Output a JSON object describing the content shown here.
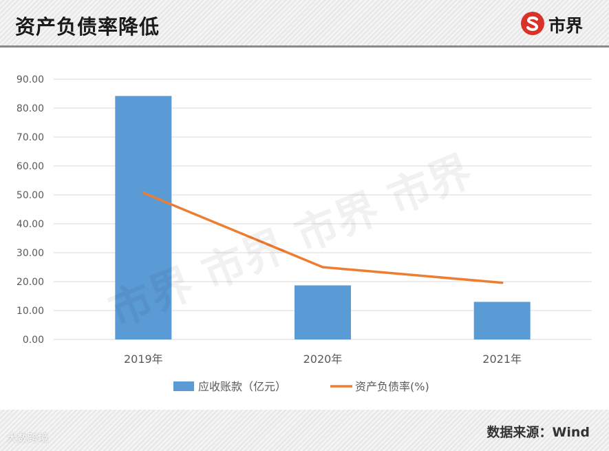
{
  "header": {
    "title": "资产负债率降低",
    "brand_name": "市界"
  },
  "footer": {
    "source": "数据来源：Wind",
    "watermark": "大数跨境"
  },
  "colors": {
    "bar": "#5b9bd5",
    "line": "#ed7d31",
    "grid": "#d9d9d9",
    "axis_text": "#595959",
    "brand_red": "#d8322a"
  },
  "chart_data": {
    "type": "bar",
    "categories": [
      "2019年",
      "2020年",
      "2021年"
    ],
    "series": [
      {
        "name": "应收账款（亿元）",
        "type": "bar",
        "values": [
          84.2,
          18.7,
          13.0
        ]
      },
      {
        "name": "资产负债率(%)",
        "type": "line",
        "values": [
          50.7,
          25.0,
          19.6
        ]
      }
    ],
    "y_ticks": [
      "0.00",
      "10.00",
      "20.00",
      "30.00",
      "40.00",
      "50.00",
      "60.00",
      "70.00",
      "80.00",
      "90.00"
    ],
    "ylim": [
      0,
      90
    ],
    "grid": true,
    "legend_position": "bottom"
  }
}
